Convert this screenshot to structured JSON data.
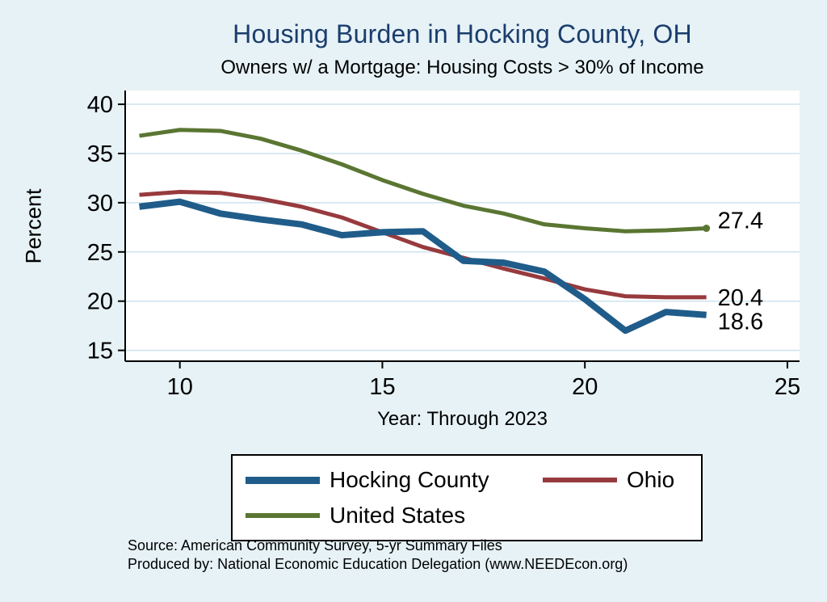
{
  "chart_data": {
    "type": "line",
    "title": "Housing Burden in Hocking County, OH",
    "subtitle": "Owners w/ a Mortgage: Housing Costs > 30% of Income",
    "xlabel": "Year: Through 2023",
    "ylabel": "Percent",
    "x": [
      9,
      10,
      11,
      12,
      13,
      14,
      15,
      16,
      17,
      18,
      19,
      20,
      21,
      22,
      23
    ],
    "xticks": [
      10,
      15,
      20,
      25
    ],
    "yticks": [
      15,
      20,
      25,
      30,
      35,
      40
    ],
    "xlim": [
      8.65,
      25.3
    ],
    "ylim": [
      13.9,
      41.4
    ],
    "grid": "horizontal",
    "legend_position": "bottom",
    "series": [
      {
        "name": "Hocking County",
        "color": "#1f5c8a",
        "line_width": 8,
        "values": [
          29.6,
          30.1,
          28.9,
          28.3,
          27.8,
          26.7,
          27.0,
          27.1,
          24.1,
          23.9,
          23.0,
          20.2,
          17.0,
          18.9,
          18.6
        ]
      },
      {
        "name": "Ohio",
        "color": "#973a3e",
        "line_width": 5,
        "values": [
          30.8,
          31.1,
          31.0,
          30.4,
          29.6,
          28.5,
          27.0,
          25.5,
          24.4,
          23.3,
          22.3,
          21.2,
          20.5,
          20.4,
          20.4
        ]
      },
      {
        "name": "United States",
        "color": "#5a7632",
        "line_width": 5,
        "end_dot": true,
        "values": [
          36.8,
          37.4,
          37.3,
          36.5,
          35.3,
          33.9,
          32.3,
          30.9,
          29.7,
          28.9,
          27.8,
          27.4,
          27.1,
          27.2,
          27.4
        ]
      }
    ],
    "end_labels": [
      {
        "series_index": 2,
        "text": "27.4"
      },
      {
        "series_index": 1,
        "text": "20.4"
      },
      {
        "series_index": 0,
        "text": "18.6"
      }
    ]
  },
  "source": {
    "line1": "Source: American Community Survey, 5-yr Summary Files",
    "line2": "Produced by: National Economic Education Delegation (www.NEEDEcon.org)"
  },
  "colors": {
    "background": "#e6f2f6",
    "plot_background": "#ffffff",
    "title": "#1b3d6d",
    "grid": "#cde3ed",
    "axis": "#000000",
    "text": "#000000",
    "legend_background": "#ffffff",
    "legend_border": "#000000"
  }
}
